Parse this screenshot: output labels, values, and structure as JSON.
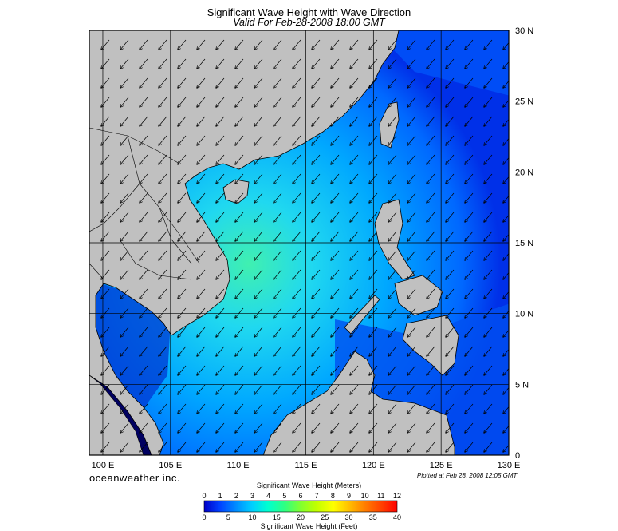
{
  "header": {
    "title": "Significant Wave Height with Wave Direction",
    "subtitle": "Valid For Feb-28-2008 18:00 GMT"
  },
  "map": {
    "lon_range": [
      99,
      130
    ],
    "lat_range": [
      0,
      30
    ],
    "lon_ticks": [
      "100 E",
      "105 E",
      "110 E",
      "115 E",
      "120 E",
      "125 E",
      "130 E"
    ],
    "lat_ticks": [
      "30 N",
      "25 N",
      "20 N",
      "15 N",
      "10 N",
      "5 N",
      "0"
    ],
    "land_color": "#c0c0c0",
    "border_color": "#000000",
    "arrow_direction": "toward southwest (from northeast)"
  },
  "footer": {
    "brand": "oceanweather inc.",
    "plotted": "Plotted at Feb 28, 2008 12:05 GMT"
  },
  "colorbar": {
    "label_top": "Significant Wave Height (Meters)",
    "label_bottom": "Significant Wave Height (Feet)",
    "meters": [
      "0",
      "1",
      "2",
      "3",
      "4",
      "5",
      "6",
      "7",
      "8",
      "9",
      "10",
      "11",
      "12"
    ],
    "feet": [
      "0",
      "5",
      "10",
      "15",
      "20",
      "25",
      "30",
      "35",
      "40"
    ],
    "colors": [
      "#0000c8",
      "#0040ff",
      "#0090ff",
      "#00d0ff",
      "#00ffd0",
      "#30ff80",
      "#80ff30",
      "#c0ff00",
      "#ffff00",
      "#ffc000",
      "#ff8000",
      "#ff4000",
      "#ff0000"
    ]
  }
}
